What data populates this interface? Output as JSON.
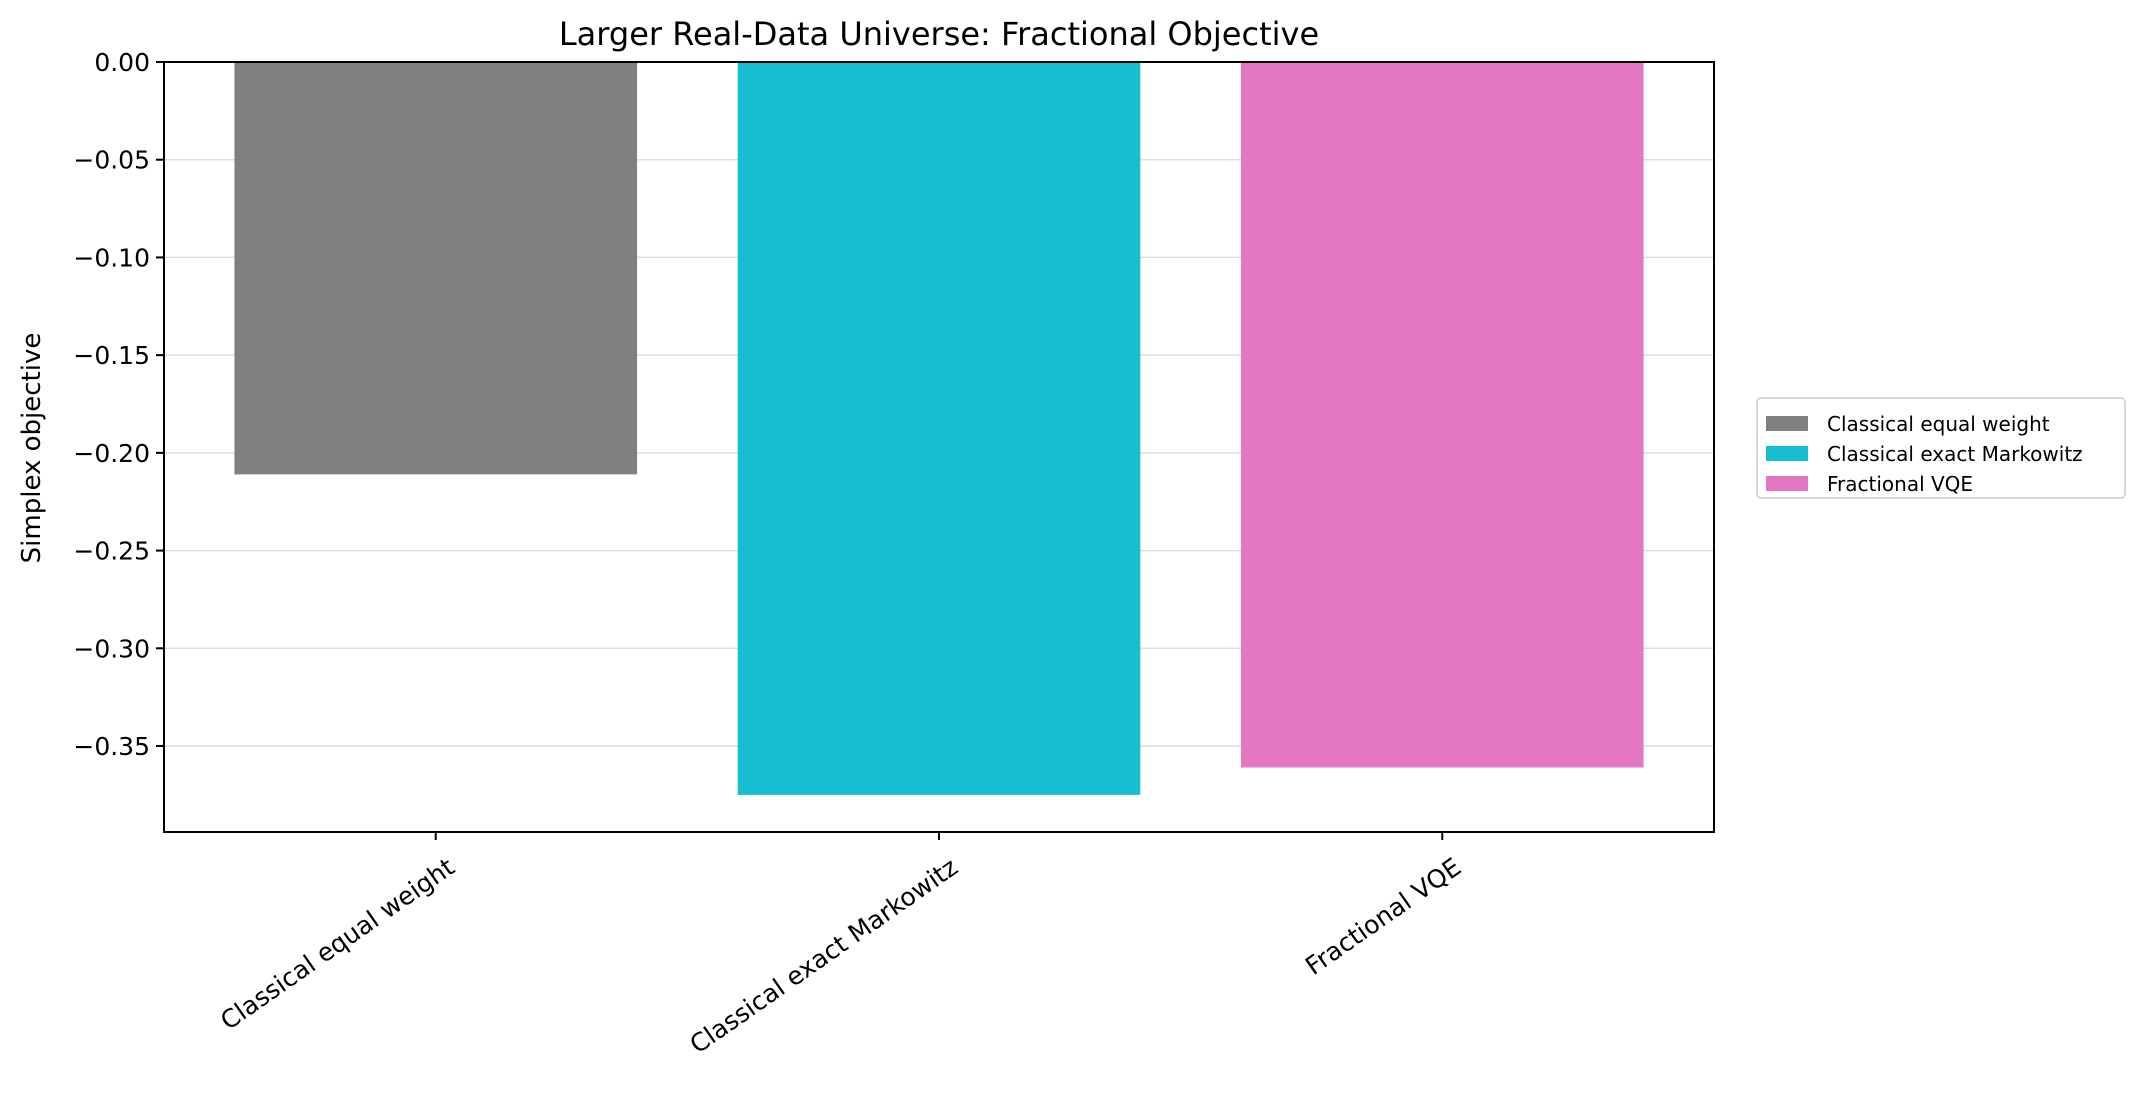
{
  "chart_data": {
    "type": "bar",
    "title": "Larger Real-Data Universe: Fractional Objective",
    "xlabel": "",
    "ylabel": "Simplex objective",
    "categories": [
      "Classical equal weight",
      "Classical exact Markowitz",
      "Fractional VQE"
    ],
    "values": [
      -0.211,
      -0.375,
      -0.361
    ],
    "colors": [
      "#7f7f7f",
      "#17becf",
      "#e377c2"
    ],
    "ylim": [
      -0.394,
      0.0
    ],
    "yticks": [
      0.0,
      -0.05,
      -0.1,
      -0.15,
      -0.2,
      -0.25,
      -0.3,
      -0.35
    ],
    "ytick_labels": [
      "0.00",
      "−0.05",
      "−0.10",
      "−0.15",
      "−0.20",
      "−0.25",
      "−0.30",
      "−0.35"
    ],
    "grid": "y",
    "legend": {
      "placement": "outside-right",
      "entries": [
        "Classical equal weight",
        "Classical exact Markowitz",
        "Fractional VQE"
      ]
    }
  }
}
